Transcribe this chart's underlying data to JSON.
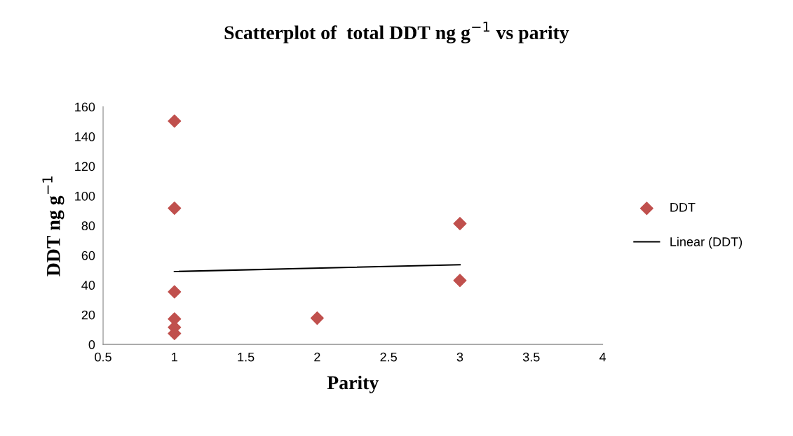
{
  "chart_data": {
    "type": "scatter",
    "title": "Scatterplot of  total DDT ng g$^{−1}$ vs parity",
    "xlabel": "Parity",
    "ylabel": "DDT ng g$^{−1}$",
    "series": [
      {
        "name": "DDT",
        "color": "#c0504d",
        "marker": "diamond",
        "x": [
          1,
          1,
          1,
          1,
          1,
          1,
          2,
          3,
          3
        ],
        "values": [
          150.4,
          91.7,
          35.4,
          17.2,
          11.5,
          7.4,
          17.7,
          81.4,
          43.1
        ]
      },
      {
        "name": "Linear (DDT)",
        "type": "line",
        "color": "#000000",
        "x": [
          1,
          3
        ],
        "values": [
          49.1,
          53.7
        ]
      }
    ],
    "xlim": [
      0.5,
      4
    ],
    "xticks": [
      0.5,
      1,
      1.5,
      2,
      2.5,
      3,
      3.5,
      4
    ],
    "ylim": [
      0,
      160
    ],
    "yticks": [
      0,
      20,
      40,
      60,
      80,
      100,
      120,
      140,
      160
    ],
    "grid": false,
    "legend": "right"
  }
}
